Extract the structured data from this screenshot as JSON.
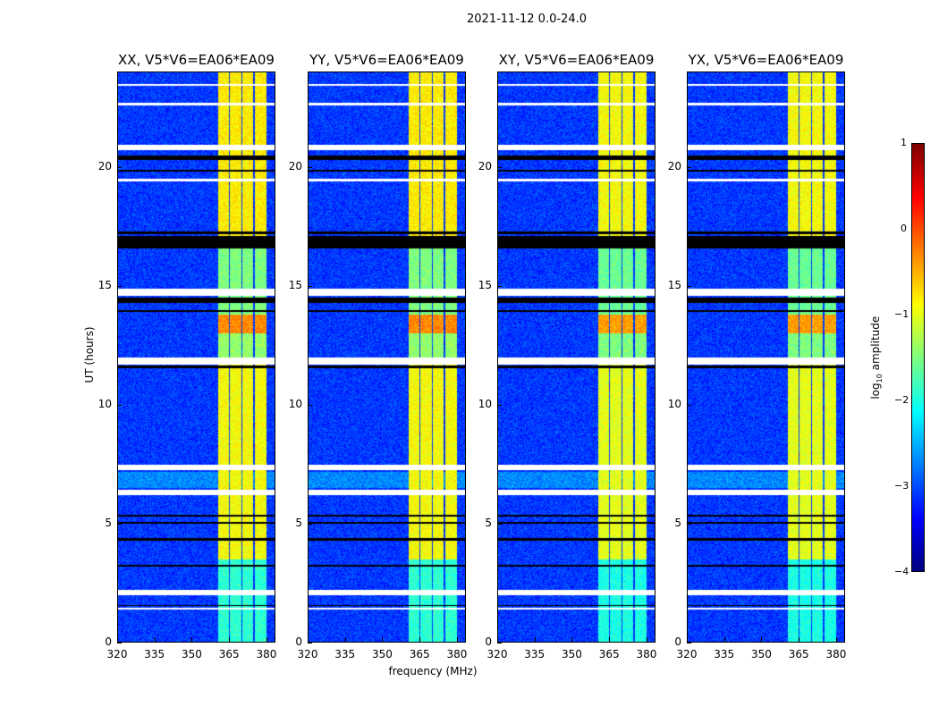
{
  "suptitle": "2021-11-12 0.0-24.0",
  "chart_data": {
    "type": "heatmap",
    "title": "2021-11-12 0.0-24.0",
    "xlabel": "frequency (MHz)",
    "ylabel": "UT (hours)",
    "xlim": [
      320,
      383.6
    ],
    "ylim": [
      0,
      24
    ],
    "xticks": [
      "320",
      "335",
      "350",
      "365",
      "380"
    ],
    "xtick_values": [
      320,
      335,
      350,
      365,
      380
    ],
    "yticks": [
      "0",
      "5",
      "10",
      "15",
      "20"
    ],
    "ytick_values": [
      0,
      5,
      10,
      15,
      20
    ],
    "panels": [
      {
        "title": "XX, V5*V6=EA06*EA09"
      },
      {
        "title": "YY, V5*V6=EA06*EA09"
      },
      {
        "title": "XY, V5*V6=EA06*EA09"
      },
      {
        "title": "YX, V5*V6=EA06*EA09"
      }
    ],
    "colorbar": {
      "label_prefix": "log",
      "label_sub": "10",
      "label_suffix": " amplitude",
      "range": [
        -4,
        1
      ],
      "ticks": [
        "1",
        "0",
        "−1",
        "−2",
        "−3",
        "−4"
      ],
      "tick_values": [
        1,
        0,
        -1,
        -2,
        -3,
        -4
      ],
      "colormap": "jet"
    },
    "background_log_amplitude": -3.1,
    "bands_mhz": [
      [
        360.3,
        364.6
      ],
      [
        365.2,
        369.6
      ],
      [
        370.2,
        374.6
      ],
      [
        375.2,
        379.8
      ]
    ],
    "band_log_amplitude_by_time": [
      {
        "t": [
          0,
          3.5
        ],
        "value": -1.9
      },
      {
        "t": [
          3.5,
          12.0
        ],
        "value": -0.9
      },
      {
        "t": [
          12.0,
          13.0
        ],
        "value": -1.4
      },
      {
        "t": [
          13.0,
          13.8
        ],
        "value": -0.3
      },
      {
        "t": [
          13.8,
          16.7
        ],
        "value": -1.5
      },
      {
        "t": [
          16.7,
          24.0
        ],
        "value": -0.8
      }
    ],
    "flagged_hours": [
      [
        1.4,
        1.5
      ],
      [
        2.0,
        2.25
      ],
      [
        6.2,
        6.45
      ],
      [
        7.25,
        7.5
      ],
      [
        11.7,
        12.0
      ],
      [
        14.6,
        14.9
      ],
      [
        19.4,
        19.5
      ],
      [
        20.7,
        20.95
      ],
      [
        22.6,
        22.7
      ],
      [
        23.4,
        23.5
      ]
    ],
    "zero_hours": [
      [
        1.55,
        1.6
      ],
      [
        3.2,
        3.3
      ],
      [
        4.3,
        4.4
      ],
      [
        5.0,
        5.1
      ],
      [
        5.3,
        5.4
      ],
      [
        11.55,
        11.65
      ],
      [
        13.9,
        14.0
      ],
      [
        14.3,
        14.5
      ],
      [
        16.6,
        17.1
      ],
      [
        17.2,
        17.3
      ],
      [
        19.8,
        19.9
      ],
      [
        20.3,
        20.5
      ]
    ]
  }
}
